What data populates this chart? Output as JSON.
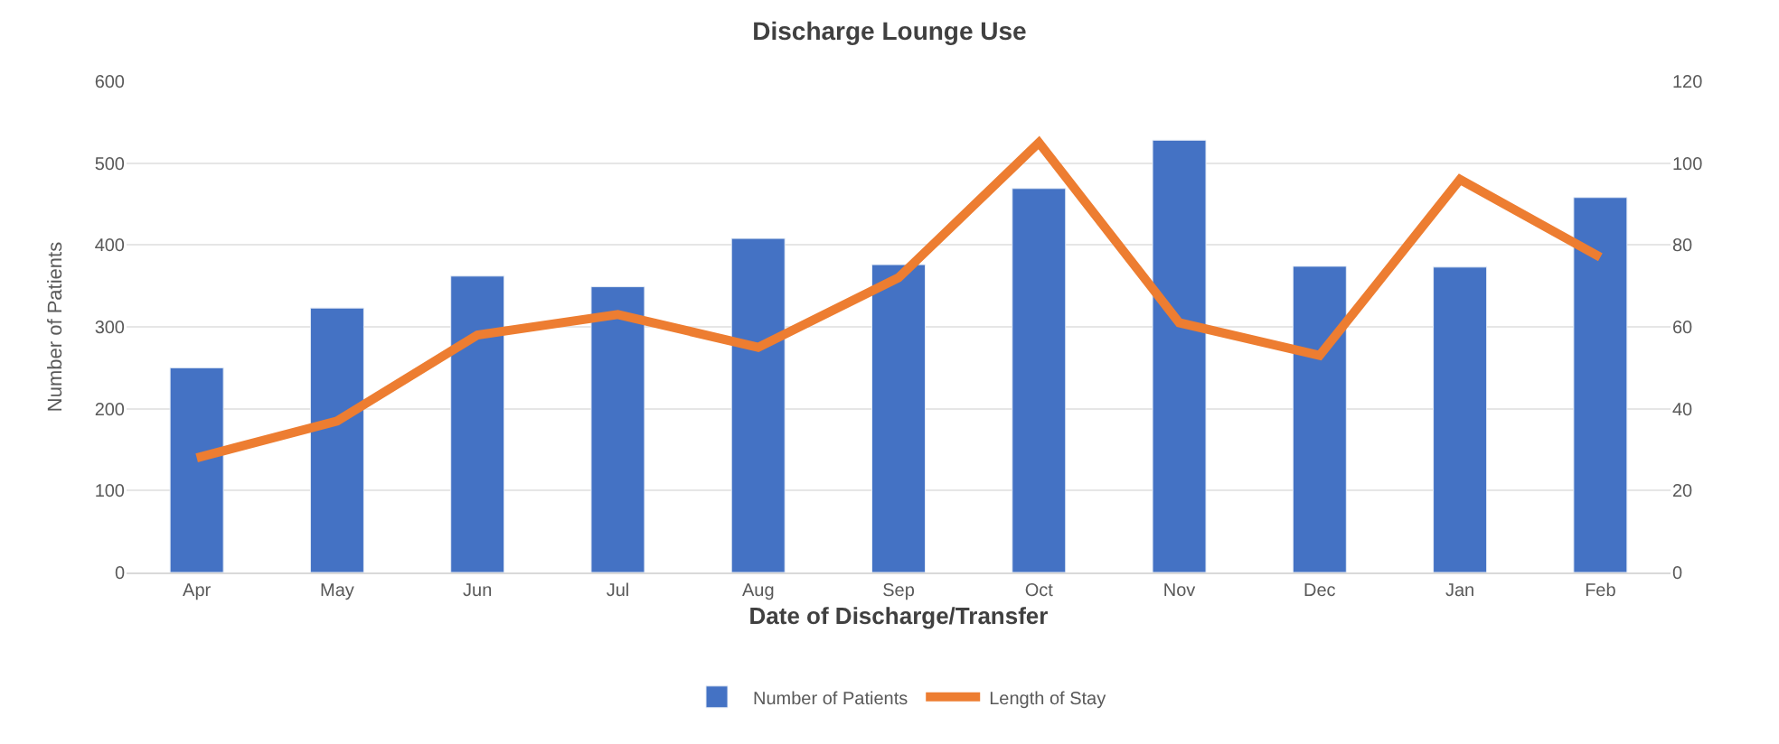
{
  "chart_data": {
    "type": "bar",
    "title": "Discharge Lounge Use",
    "xlabel": "Date of Discharge/Transfer",
    "ylabel": "Number of Patients",
    "categories": [
      "Apr",
      "May",
      "Jun",
      "Jul",
      "Aug",
      "Sep",
      "Oct",
      "Nov",
      "Dec",
      "Jan",
      "Feb"
    ],
    "series": [
      {
        "name": "Number of Patients",
        "color": "#4472c4",
        "values": [
          250,
          323,
          362,
          349,
          408,
          376,
          469,
          528,
          374,
          373,
          458
        ]
      },
      {
        "name": "Length of Stay",
        "type": "line",
        "axis": "y2",
        "color": "#ed7d31",
        "line_style": "solid",
        "values": [
          28,
          37,
          58,
          63,
          55,
          72,
          105,
          61,
          53,
          96,
          77
        ]
      }
    ],
    "ylim": [
      0,
      600
    ],
    "yticks": [
      0,
      100,
      200,
      300,
      400,
      500,
      600
    ],
    "y2lim": [
      0,
      120
    ],
    "y2ticks": [
      0,
      20,
      40,
      60,
      80,
      100,
      120
    ],
    "grid": "y",
    "legend": "bottom"
  }
}
